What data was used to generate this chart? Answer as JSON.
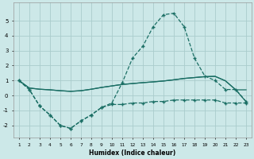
{
  "xlabel": "Humidex (Indice chaleur)",
  "x": [
    1,
    2,
    3,
    4,
    5,
    6,
    7,
    8,
    9,
    10,
    11,
    12,
    13,
    14,
    15,
    16,
    17,
    18,
    19,
    20,
    21,
    22,
    23
  ],
  "line_peak": [
    1.0,
    0.4,
    -0.7,
    -1.3,
    -2.0,
    -2.2,
    -1.7,
    -1.3,
    -0.8,
    -0.5,
    0.85,
    2.5,
    3.3,
    4.6,
    5.4,
    5.5,
    4.6,
    2.5,
    1.3,
    1.0,
    0.4,
    0.4,
    -0.4
  ],
  "line_low": [
    1.0,
    0.4,
    -0.7,
    -1.3,
    -2.0,
    -2.2,
    -1.7,
    -1.3,
    -0.8,
    -0.6,
    -0.6,
    -0.5,
    -0.5,
    -0.4,
    -0.4,
    -0.3,
    -0.3,
    -0.3,
    -0.3,
    -0.3,
    -0.5,
    -0.5,
    -0.5
  ],
  "line_flat1": [
    1.0,
    0.5,
    0.42,
    0.38,
    0.32,
    0.28,
    0.32,
    0.42,
    0.54,
    0.64,
    0.74,
    0.8,
    0.86,
    0.91,
    0.97,
    1.05,
    1.14,
    1.2,
    1.26,
    1.28,
    0.98,
    0.38,
    0.38
  ],
  "line_flat2": [
    1.0,
    0.5,
    0.42,
    0.38,
    0.32,
    0.28,
    0.32,
    0.42,
    0.54,
    0.64,
    0.74,
    0.8,
    0.86,
    0.91,
    0.97,
    1.05,
    1.14,
    1.2,
    1.26,
    1.28,
    0.98,
    0.38,
    -0.42
  ],
  "line_color": "#1a6e64",
  "bg_color": "#cce8e8",
  "grid_color": "#aacccc",
  "ylim": [
    -2.8,
    6.2
  ],
  "yticks": [
    -2,
    -1,
    0,
    1,
    2,
    3,
    4,
    5
  ]
}
